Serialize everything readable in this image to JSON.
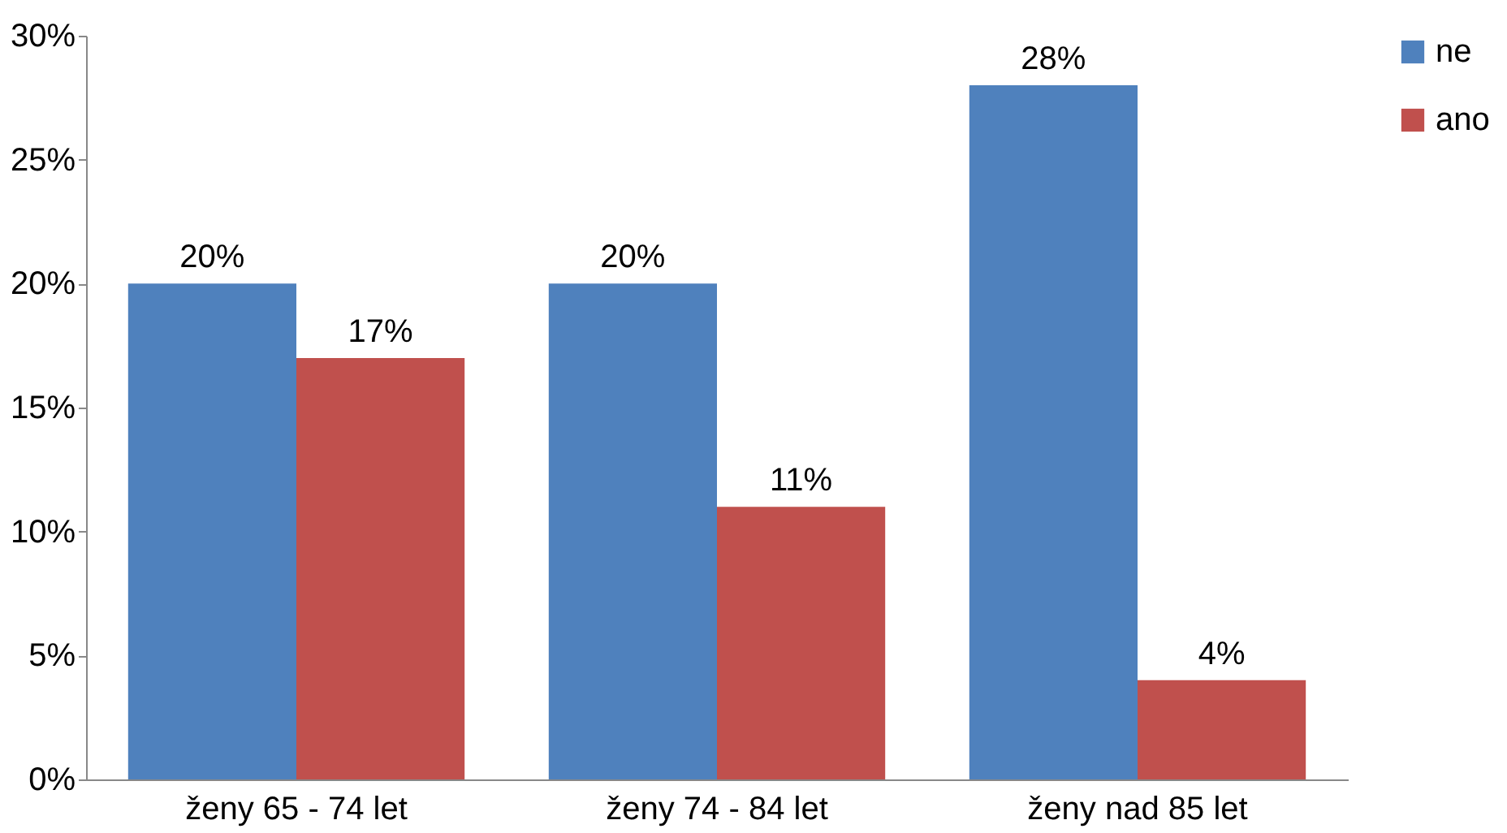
{
  "chart_data": {
    "type": "bar",
    "categories": [
      "ženy 65 - 74 let",
      "ženy 74 - 84 let",
      "ženy nad 85 let"
    ],
    "series": [
      {
        "name": "ne",
        "color": "#4f81bd",
        "values": [
          20,
          20,
          28
        ],
        "value_labels": [
          "20%",
          "20%",
          "28%"
        ]
      },
      {
        "name": "ano",
        "color": "#c0504d",
        "values": [
          17,
          11,
          4
        ],
        "value_labels": [
          "17%",
          "11%",
          "4%"
        ]
      }
    ],
    "ylim": [
      0,
      30
    ],
    "yticks": [
      {
        "value": 0,
        "label": "0%"
      },
      {
        "value": 5,
        "label": "5%"
      },
      {
        "value": 10,
        "label": "10%"
      },
      {
        "value": 15,
        "label": "15%"
      },
      {
        "value": 20,
        "label": "20%"
      },
      {
        "value": 25,
        "label": "25%"
      },
      {
        "value": 30,
        "label": "30%"
      }
    ],
    "legend": "right"
  }
}
